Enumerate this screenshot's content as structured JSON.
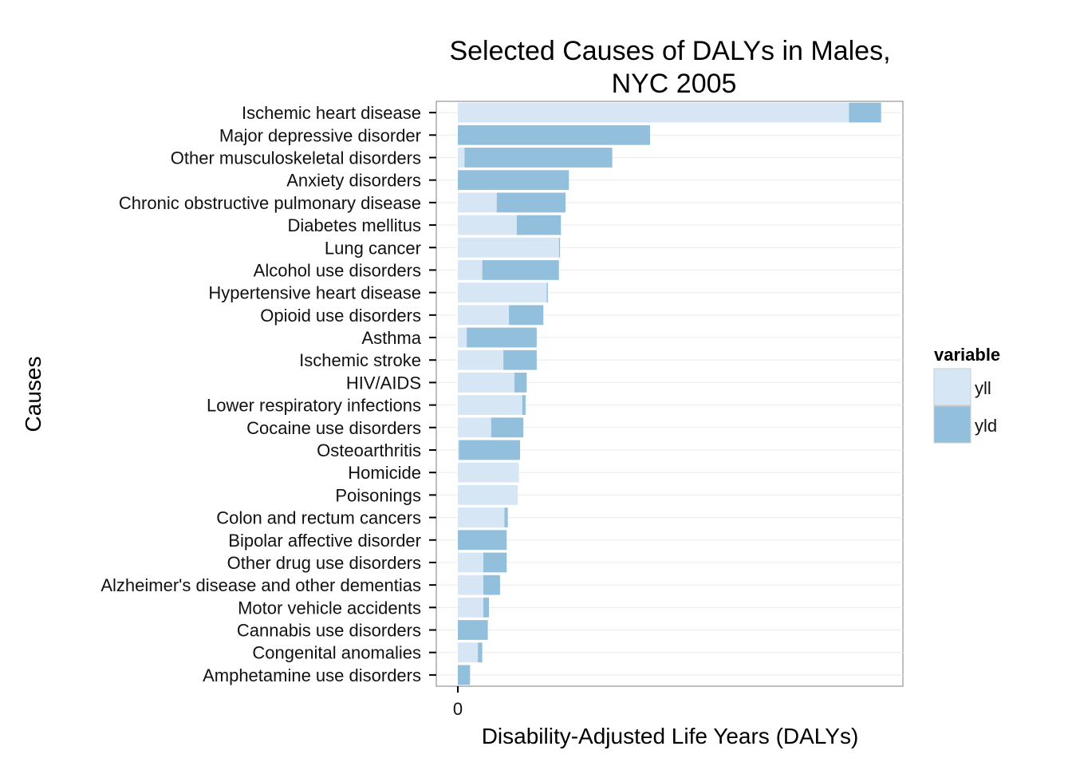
{
  "chart_data": {
    "type": "bar",
    "orientation": "horizontal",
    "stacked": true,
    "title": "Selected Causes of DALYs in Males,",
    "title_line2": "NYC 2005",
    "xlabel": "Disability-Adjusted Life Years (DALYs)",
    "ylabel": "Causes",
    "x_ticks": [
      "0"
    ],
    "xlim": [
      -1.0,
      20.0
    ],
    "grid": true,
    "legend": {
      "title": "variable",
      "position": "right",
      "items": [
        {
          "name": "yll",
          "color": "#d6e6f4"
        },
        {
          "name": "yld",
          "color": "#92c0dc"
        }
      ]
    },
    "categories": [
      "Ischemic heart disease",
      "Major depressive disorder",
      "Other musculoskeletal disorders",
      "Anxiety disorders",
      "Chronic obstructive pulmonary disease",
      "Diabetes mellitus",
      "Lung cancer",
      "Alcohol use disorders",
      "Hypertensive heart disease",
      "Opioid use disorders",
      "Asthma",
      "Ischemic stroke",
      "HIV/AIDS",
      "Lower respiratory infections",
      "Cocaine use disorders",
      "Osteoarthritis",
      "Homicide",
      "Poisonings",
      "Colon and rectum cancers",
      "Bipolar affective disorder",
      "Other drug use disorders",
      "Alzheimer's disease and other dementias",
      "Motor vehicle accidents",
      "Cannabis use disorders",
      "Congenital anomalies",
      "Amphetamine use disorders"
    ],
    "series": [
      {
        "name": "yll",
        "color": "#d6e6f4",
        "values": [
          17.6,
          0.0,
          0.3,
          0.0,
          1.75,
          2.65,
          4.55,
          1.1,
          4.0,
          2.3,
          0.4,
          2.05,
          2.55,
          2.9,
          1.5,
          0.05,
          2.75,
          2.7,
          2.1,
          0.0,
          1.15,
          1.15,
          1.15,
          0.0,
          0.9,
          0.0
        ]
      },
      {
        "name": "yld",
        "color": "#92c0dc",
        "values": [
          1.45,
          8.65,
          6.65,
          5.0,
          3.1,
          1.99,
          0.05,
          3.45,
          0.05,
          1.55,
          3.15,
          1.5,
          0.55,
          0.15,
          1.45,
          2.75,
          0.0,
          0.0,
          0.15,
          2.2,
          1.05,
          0.75,
          0.25,
          1.35,
          0.2,
          0.55
        ]
      }
    ]
  }
}
